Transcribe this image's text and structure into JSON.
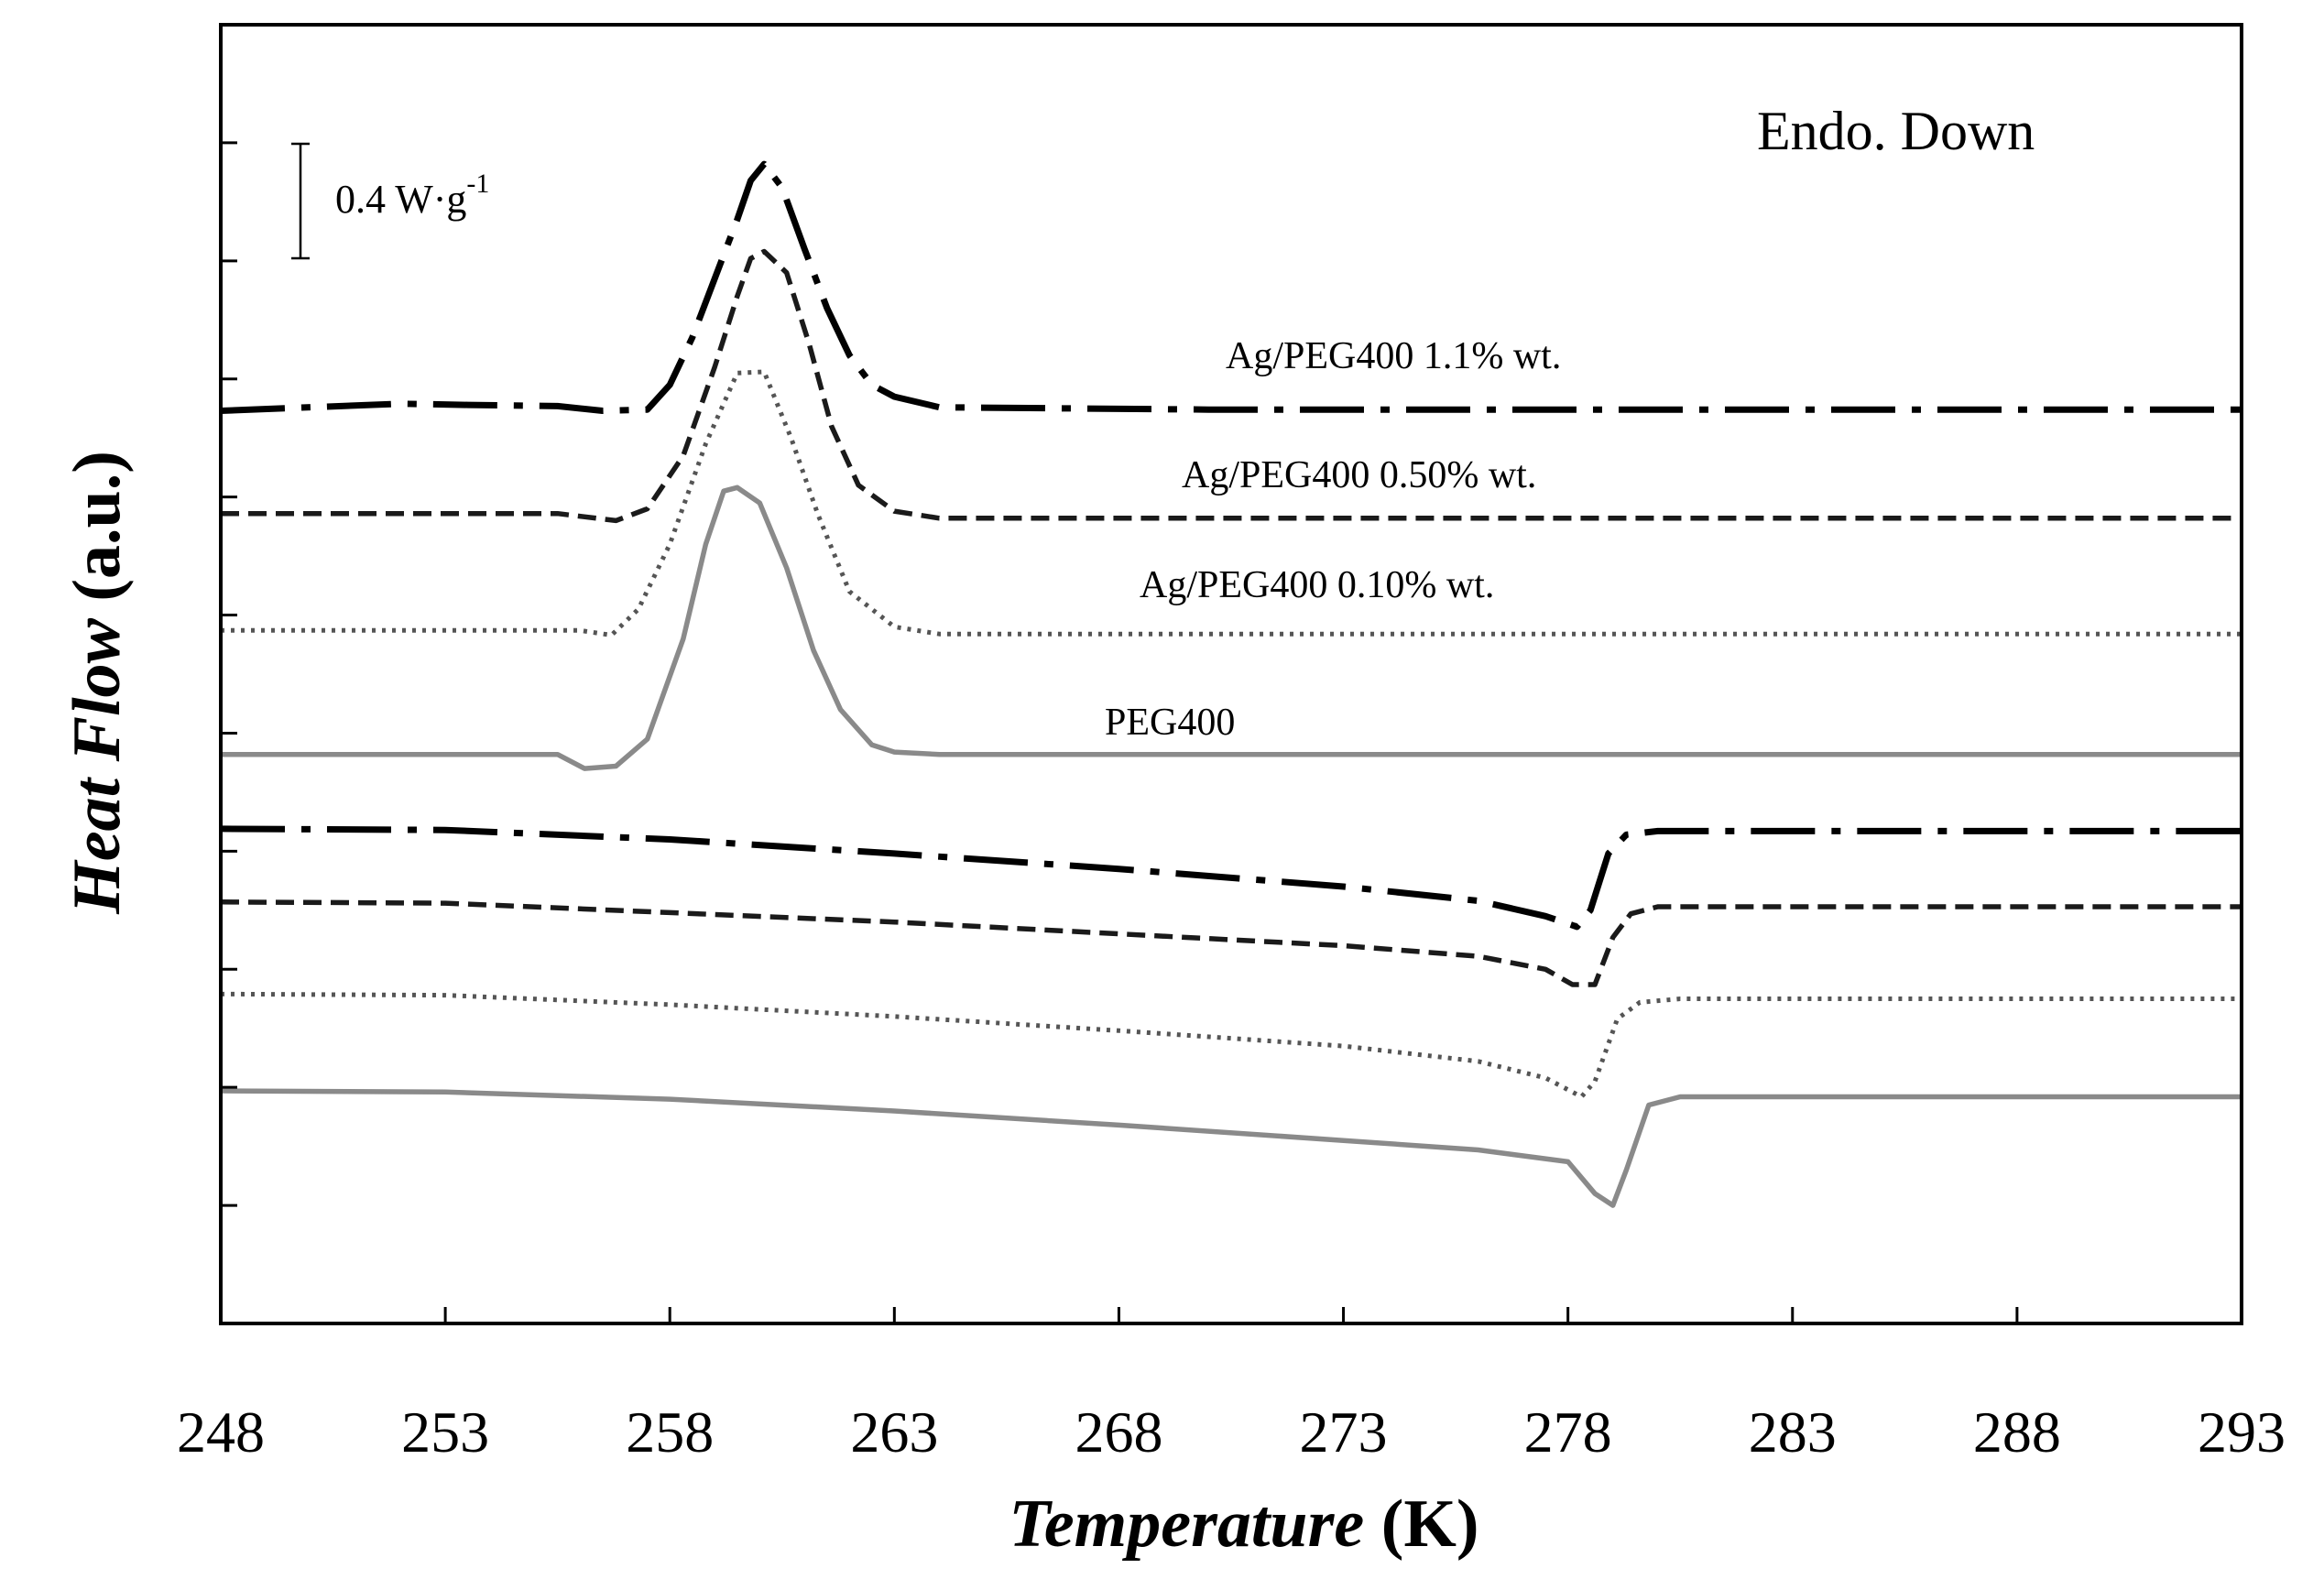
{
  "chart_data": {
    "type": "line",
    "title": "",
    "xlabel": "Temperature",
    "xlabel_unit": "(K)",
    "ylabel": "Heat Flow",
    "ylabel_unit": "(a.u.)",
    "xlim": [
      248,
      293
    ],
    "ylim": [
      0,
      11
    ],
    "x_ticks": [
      248,
      253,
      258,
      263,
      268,
      273,
      278,
      283,
      288,
      293
    ],
    "y_ticks_count": 10,
    "y_tick_labels_shown": false,
    "grid": false,
    "annotation_top_right": "Endo. Down",
    "scale_bar": {
      "value": 0.4,
      "unit_text": "W·g",
      "exponent": "-1",
      "label": "0.4 W·g-1"
    },
    "colors": {
      "ag_1_1": "#000000",
      "ag_0_50": "#1a1a1a",
      "ag_0_10": "#555555",
      "peg400": "#8a8a8a"
    },
    "series": [
      {
        "name": "Ag/PEG400 1.1% wt.",
        "key": "ag_1_1",
        "style": "dashdot",
        "label_shown": true,
        "segment": "cooling",
        "x": [
          248,
          252,
          253.5,
          255.5,
          256.5,
          257.5,
          258,
          258.5,
          259,
          259.5,
          259.8,
          260.1,
          260.5,
          261,
          261.5,
          262,
          262.5,
          263,
          264,
          270,
          280,
          293
        ],
        "y": [
          7.73,
          7.79,
          7.78,
          7.77,
          7.73,
          7.74,
          7.95,
          8.35,
          8.85,
          9.35,
          9.68,
          9.82,
          9.62,
          9.1,
          8.6,
          8.2,
          7.95,
          7.85,
          7.76,
          7.74,
          7.74,
          7.74
        ]
      },
      {
        "name": "Ag/PEG400 0.50% wt.",
        "key": "ag_0_50",
        "style": "dashed",
        "label_shown": true,
        "segment": "cooling",
        "x": [
          248,
          252,
          255.5,
          256.8,
          257.5,
          258.3,
          259,
          259.5,
          259.8,
          260.1,
          260.6,
          261.1,
          261.6,
          262.2,
          263,
          264,
          270,
          280,
          293
        ],
        "y": [
          6.86,
          6.86,
          6.86,
          6.8,
          6.9,
          7.35,
          8.1,
          8.7,
          9.02,
          9.08,
          8.9,
          8.3,
          7.6,
          7.1,
          6.88,
          6.82,
          6.82,
          6.82,
          6.82
        ]
      },
      {
        "name": "Ag/PEG400 0.10% wt.",
        "key": "ag_0_10",
        "style": "dotted",
        "label_shown": true,
        "segment": "cooling",
        "x": [
          248,
          252,
          256,
          256.7,
          257.3,
          258,
          258.8,
          259.5,
          260.1,
          260.7,
          261.3,
          262,
          263,
          264,
          270,
          280,
          293
        ],
        "y": [
          5.87,
          5.87,
          5.87,
          5.83,
          6.05,
          6.6,
          7.45,
          8.05,
          8.06,
          7.5,
          6.85,
          6.2,
          5.9,
          5.84,
          5.84,
          5.84,
          5.84
        ]
      },
      {
        "name": "PEG400",
        "key": "peg400",
        "style": "solid",
        "label_shown": true,
        "segment": "cooling",
        "x": [
          248,
          253,
          255.5,
          256.1,
          256.8,
          257.5,
          258.3,
          258.8,
          259.2,
          259.5,
          260,
          260.6,
          261.2,
          261.8,
          262.5,
          263,
          264,
          270,
          280,
          293
        ],
        "y": [
          4.82,
          4.82,
          4.82,
          4.7,
          4.72,
          4.95,
          5.8,
          6.6,
          7.05,
          7.08,
          6.95,
          6.4,
          5.7,
          5.2,
          4.9,
          4.84,
          4.82,
          4.82,
          4.82,
          4.82
        ]
      },
      {
        "name": "Ag/PEG400 1.1% wt.",
        "key": "ag_1_1",
        "style": "dashdot",
        "label_shown": false,
        "segment": "heating",
        "x": [
          248,
          253,
          258,
          263,
          268,
          273,
          276,
          277.5,
          278.2,
          278.5,
          278.9,
          279.3,
          280,
          285,
          293
        ],
        "y": [
          4.19,
          4.18,
          4.1,
          3.98,
          3.85,
          3.7,
          3.58,
          3.45,
          3.36,
          3.5,
          3.98,
          4.14,
          4.17,
          4.17,
          4.17
        ]
      },
      {
        "name": "Ag/PEG400 0.50% wt.",
        "key": "ag_0_50",
        "style": "dashed",
        "label_shown": false,
        "segment": "heating",
        "x": [
          248,
          253,
          258,
          263,
          268,
          273,
          276,
          277.5,
          278.1,
          278.6,
          279,
          279.4,
          280,
          285,
          293
        ],
        "y": [
          3.57,
          3.56,
          3.48,
          3.4,
          3.3,
          3.2,
          3.11,
          3.0,
          2.87,
          2.87,
          3.27,
          3.47,
          3.53,
          3.53,
          3.53
        ]
      },
      {
        "name": "Ag/PEG400 0.10% wt.",
        "key": "ag_0_10",
        "style": "dotted",
        "label_shown": false,
        "segment": "heating",
        "x": [
          248,
          253,
          258,
          263,
          268,
          273,
          276,
          277.5,
          278.3,
          278.6,
          279.1,
          279.6,
          280.5,
          285,
          293
        ],
        "y": [
          2.79,
          2.78,
          2.7,
          2.6,
          2.48,
          2.35,
          2.22,
          2.08,
          1.92,
          2.05,
          2.58,
          2.72,
          2.75,
          2.75,
          2.75
        ]
      },
      {
        "name": "PEG400",
        "key": "peg400",
        "style": "solid",
        "label_shown": false,
        "segment": "heating",
        "x": [
          248,
          253,
          258,
          263,
          268,
          273,
          276,
          278,
          278.6,
          279,
          279.3,
          279.8,
          280.5,
          285,
          293
        ],
        "y": [
          1.97,
          1.96,
          1.9,
          1.8,
          1.68,
          1.55,
          1.47,
          1.37,
          1.1,
          1.0,
          1.3,
          1.85,
          1.92,
          1.92,
          1.92
        ]
      }
    ]
  }
}
